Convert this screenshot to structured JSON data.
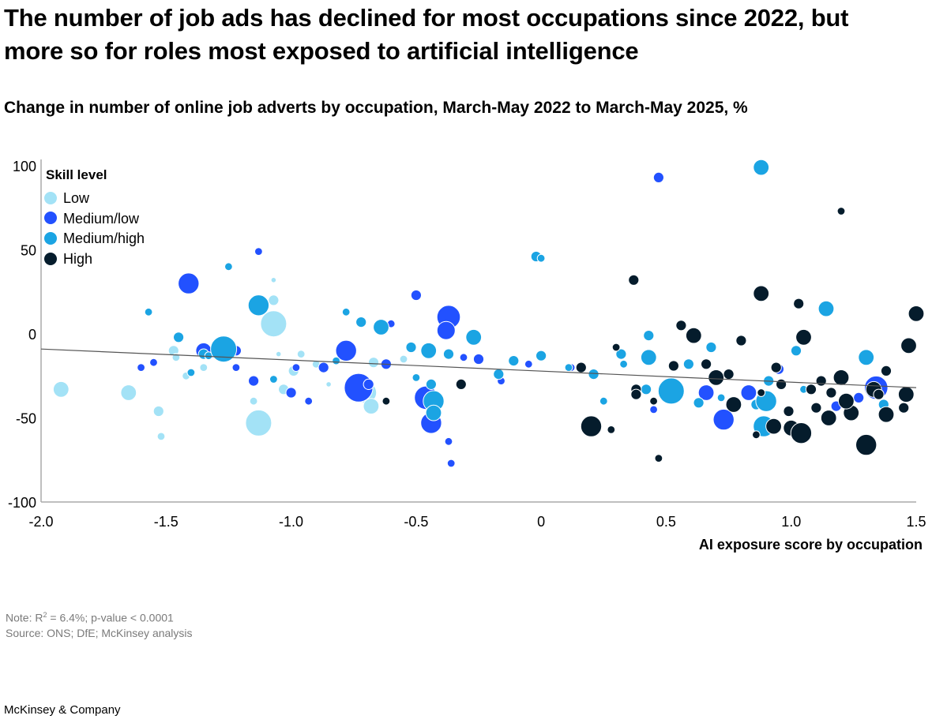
{
  "title": "The number of job ads has declined for most occupations since 2022, but more so for roles most exposed to artificial intelligence",
  "subtitle": "Change in number of online job adverts by occupation, March-May 2022 to March-May 2025, %",
  "note_label": "Note: R",
  "note_sup": "2",
  "note_rest": " = 6.4%; p-value < 0.0001",
  "source": "Source: ONS; DfE; McKinsey analysis",
  "brand": "McKinsey & Company",
  "colors": {
    "Low": "#a3e2f6",
    "Medium/low": "#2251ff",
    "Medium/high": "#1ba4e3",
    "High": "#051c2c",
    "axis": "#aaaaaa",
    "trend": "#555555"
  },
  "chart_data": {
    "type": "scatter",
    "xlabel": "AI exposure score by occupation",
    "ylabel": "",
    "xlim": [
      -2.0,
      1.5
    ],
    "ylim": [
      -100,
      100
    ],
    "xticks": [
      -2.0,
      -1.5,
      -1.0,
      -0.5,
      0,
      0.5,
      1.0,
      1.5
    ],
    "xtick_labels": [
      "-2.0",
      "-1.5",
      "-1.0",
      "-0.5",
      "0",
      "0.5",
      "1.0",
      "1.5"
    ],
    "yticks": [
      100,
      50,
      0,
      -50,
      -100
    ],
    "ytick_labels": [
      "100",
      "50",
      "0",
      "-50",
      "-100"
    ],
    "legend": {
      "title": "Skill level",
      "placement": "top-left",
      "entries": [
        "Low",
        "Medium/low",
        "Medium/high",
        "High"
      ]
    },
    "trendline": {
      "x": [
        -2.0,
        1.5
      ],
      "y": [
        -9,
        -32
      ]
    },
    "bubble_size_legend": "none",
    "series": [
      {
        "name": "Low",
        "points": [
          [
            -1.92,
            -33,
            3
          ],
          [
            -1.65,
            -35,
            3
          ],
          [
            -1.52,
            -61,
            1.5
          ],
          [
            -1.53,
            -46,
            2
          ],
          [
            -1.47,
            -10,
            2
          ],
          [
            -1.46,
            -14,
            1.5
          ],
          [
            -1.42,
            -25,
            1.5
          ],
          [
            -1.35,
            -20,
            1.5
          ],
          [
            -1.13,
            -53,
            5
          ],
          [
            -1.15,
            -40,
            1.5
          ],
          [
            -1.07,
            6,
            5
          ],
          [
            -1.07,
            20,
            2
          ],
          [
            -1.07,
            32,
            1
          ],
          [
            -1.03,
            -33,
            2
          ],
          [
            -0.99,
            -22,
            2
          ],
          [
            -0.96,
            -12,
            1.5
          ],
          [
            -0.9,
            -18,
            1.5
          ],
          [
            -0.7,
            -35,
            4
          ],
          [
            -0.68,
            -43,
            3
          ],
          [
            -0.67,
            -17,
            2
          ],
          [
            -0.85,
            -30,
            1
          ],
          [
            -1.05,
            -12,
            1
          ],
          [
            -1.25,
            -7,
            1
          ],
          [
            -0.55,
            -15,
            1.5
          ]
        ]
      },
      {
        "name": "Medium/low",
        "points": [
          [
            -1.41,
            30,
            4
          ],
          [
            -1.35,
            -10,
            3
          ],
          [
            -1.22,
            -20,
            1.5
          ],
          [
            -1.13,
            49,
            1.5
          ],
          [
            -1.0,
            -35,
            2
          ],
          [
            -0.98,
            -20,
            1.5
          ],
          [
            -0.87,
            -20,
            2
          ],
          [
            -0.78,
            -10,
            4
          ],
          [
            -0.73,
            -32,
            5.5
          ],
          [
            -0.69,
            -30,
            2
          ],
          [
            -0.6,
            6,
            1.5
          ],
          [
            -0.5,
            23,
            2
          ],
          [
            -0.46,
            -38,
            4.5
          ],
          [
            -0.44,
            -53,
            4
          ],
          [
            -0.37,
            10,
            4.5
          ],
          [
            -0.38,
            2,
            3.5
          ],
          [
            -0.37,
            -64,
            1.5
          ],
          [
            -0.36,
            -77,
            1.5
          ],
          [
            -0.31,
            -14,
            1.5
          ],
          [
            -0.25,
            -15,
            2
          ],
          [
            -0.16,
            -28,
            1.5
          ],
          [
            -0.05,
            -18,
            1.5
          ],
          [
            0.12,
            -20,
            1.5
          ],
          [
            0.45,
            -45,
            1.5
          ],
          [
            0.47,
            93,
            2
          ],
          [
            0.66,
            -35,
            3
          ],
          [
            0.73,
            -51,
            4
          ],
          [
            0.83,
            -35,
            3
          ],
          [
            0.95,
            -21,
            2
          ],
          [
            1.18,
            -43,
            2
          ],
          [
            1.27,
            -38,
            2
          ],
          [
            1.34,
            -32,
            4.5
          ],
          [
            -1.15,
            -28,
            2
          ],
          [
            -1.22,
            -10,
            2
          ],
          [
            -0.93,
            -40,
            1.5
          ],
          [
            -0.62,
            -18,
            2
          ],
          [
            -1.6,
            -20,
            1.5
          ],
          [
            -1.55,
            -17,
            1.5
          ]
        ]
      },
      {
        "name": "Medium/high",
        "points": [
          [
            -1.57,
            13,
            1.5
          ],
          [
            -1.45,
            -2,
            2
          ],
          [
            -1.35,
            -12,
            2
          ],
          [
            -1.33,
            -13,
            1.5
          ],
          [
            -1.27,
            -9,
            5
          ],
          [
            -1.13,
            17,
            4
          ],
          [
            -1.07,
            -27,
            1.5
          ],
          [
            -0.82,
            -16,
            1.5
          ],
          [
            -0.72,
            7,
            2
          ],
          [
            -0.64,
            4,
            3
          ],
          [
            -0.5,
            -26,
            1.5
          ],
          [
            -0.45,
            -10,
            3
          ],
          [
            -0.43,
            -40,
            4
          ],
          [
            -0.43,
            -47,
            3
          ],
          [
            -0.44,
            -30,
            2
          ],
          [
            -0.37,
            -12,
            2
          ],
          [
            -0.27,
            -2,
            3
          ],
          [
            -0.17,
            -24,
            2
          ],
          [
            -0.11,
            -16,
            2
          ],
          [
            -0.02,
            46,
            2
          ],
          [
            0.0,
            45,
            1.5
          ],
          [
            0.0,
            -13,
            2
          ],
          [
            0.11,
            -20,
            1.5
          ],
          [
            0.21,
            -24,
            2
          ],
          [
            0.25,
            -40,
            1.5
          ],
          [
            0.32,
            -12,
            2
          ],
          [
            0.33,
            -18,
            1.5
          ],
          [
            0.42,
            -33,
            2
          ],
          [
            0.43,
            -1,
            2
          ],
          [
            0.43,
            -14,
            3
          ],
          [
            0.52,
            -34,
            5
          ],
          [
            0.59,
            -18,
            2
          ],
          [
            0.63,
            -41,
            2
          ],
          [
            0.68,
            -8,
            2
          ],
          [
            0.72,
            -38,
            1.5
          ],
          [
            0.86,
            -42,
            2
          ],
          [
            0.88,
            99,
            3
          ],
          [
            0.89,
            -55,
            4
          ],
          [
            0.9,
            -40,
            4
          ],
          [
            0.91,
            -28,
            2
          ],
          [
            1.02,
            -10,
            2
          ],
          [
            1.05,
            -33,
            1.5
          ],
          [
            1.14,
            15,
            3
          ],
          [
            1.2,
            -25,
            1.5
          ],
          [
            1.3,
            -14,
            3
          ],
          [
            1.37,
            -42,
            2
          ],
          [
            -1.25,
            40,
            1.5
          ],
          [
            -0.78,
            13,
            1.5
          ],
          [
            -1.4,
            -23,
            1.5
          ],
          [
            -0.52,
            -8,
            2
          ]
        ]
      },
      {
        "name": "High",
        "points": [
          [
            -0.62,
            -40,
            1.5
          ],
          [
            -0.32,
            -30,
            2
          ],
          [
            0.2,
            -55,
            4
          ],
          [
            0.28,
            -57,
            1.5
          ],
          [
            0.38,
            -33,
            2
          ],
          [
            0.37,
            32,
            2
          ],
          [
            0.38,
            -36,
            2
          ],
          [
            0.53,
            -19,
            2
          ],
          [
            0.56,
            5,
            2
          ],
          [
            0.61,
            -1,
            3
          ],
          [
            0.7,
            -26,
            3
          ],
          [
            0.8,
            -4,
            2
          ],
          [
            0.86,
            -60,
            1.5
          ],
          [
            0.88,
            24,
            3
          ],
          [
            0.93,
            -55,
            3
          ],
          [
            0.99,
            -46,
            2
          ],
          [
            1.0,
            -56,
            3
          ],
          [
            1.04,
            -59,
            4
          ],
          [
            1.03,
            18,
            2
          ],
          [
            1.08,
            -33,
            2
          ],
          [
            1.12,
            -28,
            2
          ],
          [
            1.15,
            -50,
            3
          ],
          [
            1.2,
            -26,
            3
          ],
          [
            1.24,
            -47,
            3
          ],
          [
            1.3,
            -66,
            4
          ],
          [
            1.33,
            -33,
            3
          ],
          [
            1.35,
            -36,
            2
          ],
          [
            1.38,
            -48,
            3
          ],
          [
            1.46,
            -36,
            3
          ],
          [
            1.47,
            -7,
            3
          ],
          [
            1.5,
            12,
            3
          ],
          [
            1.05,
            -2,
            3
          ],
          [
            1.1,
            -44,
            2
          ],
          [
            0.96,
            -30,
            2
          ],
          [
            1.16,
            -35,
            2
          ],
          [
            0.77,
            -42,
            3
          ],
          [
            0.16,
            -20,
            2
          ],
          [
            0.45,
            -40,
            1.5
          ],
          [
            0.3,
            -8,
            1.5
          ],
          [
            1.38,
            -22,
            2
          ],
          [
            0.75,
            -24,
            2
          ],
          [
            0.66,
            -18,
            2
          ],
          [
            0.94,
            -20,
            2
          ],
          [
            1.22,
            -40,
            3
          ],
          [
            0.88,
            -35,
            1.5
          ],
          [
            0.47,
            -74,
            1.5
          ],
          [
            1.2,
            73,
            1.5
          ],
          [
            1.45,
            -44,
            2
          ]
        ]
      }
    ]
  }
}
